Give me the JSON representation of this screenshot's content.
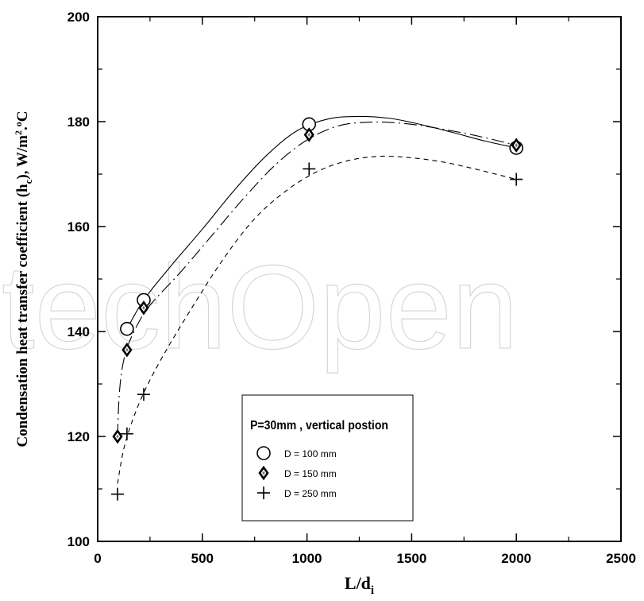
{
  "chart_data": {
    "type": "scatter",
    "xlabel_main": "L/d",
    "xlabel_sub": "i",
    "ylabel_parts": [
      "Condensation heat transfer coefficient (h",
      "c",
      "),  W/m",
      "2",
      ".",
      "o",
      "C"
    ],
    "xlim": [
      0,
      2500
    ],
    "ylim": [
      100,
      200
    ],
    "x_ticks": [
      0,
      500,
      1000,
      1500,
      2000,
      2500
    ],
    "y_ticks": [
      100,
      120,
      140,
      160,
      180,
      200
    ],
    "grid": false,
    "legend_position": "lower-center",
    "legend_title": "P=30mm , vertical postion",
    "watermark": "techOpen",
    "series": [
      {
        "name": "D = 100 mm",
        "marker": "circle",
        "line": "solid",
        "x": [
          140,
          220,
          1010,
          2000
        ],
        "y": [
          140.5,
          146,
          179.5,
          175
        ],
        "curve": [
          [
            140,
            140.5
          ],
          [
            220,
            146
          ],
          [
            350,
            152.5
          ],
          [
            500,
            159.5
          ],
          [
            650,
            166.8
          ],
          [
            800,
            173.3
          ],
          [
            950,
            178.2
          ],
          [
            1100,
            180.5
          ],
          [
            1250,
            181.0
          ],
          [
            1400,
            180.6
          ],
          [
            1550,
            179.4
          ],
          [
            1700,
            177.9
          ],
          [
            1850,
            176.3
          ],
          [
            2000,
            175
          ]
        ]
      },
      {
        "name": "D = 150 mm",
        "marker": "diamond",
        "line": "dash-dot",
        "x": [
          95,
          140,
          220,
          1010,
          2000
        ],
        "y": [
          120,
          136.5,
          144.5,
          177.5,
          175.5
        ],
        "curve": [
          [
            95,
            120
          ],
          [
            105,
            129
          ],
          [
            130,
            135.5
          ],
          [
            180,
            140.5
          ],
          [
            250,
            145
          ],
          [
            400,
            151.5
          ],
          [
            550,
            158.5
          ],
          [
            700,
            165.5
          ],
          [
            850,
            171.8
          ],
          [
            1000,
            176.5
          ],
          [
            1150,
            179.2
          ],
          [
            1300,
            179.9
          ],
          [
            1450,
            179.7
          ],
          [
            1600,
            178.9
          ],
          [
            1800,
            177.4
          ],
          [
            2000,
            175.5
          ]
        ]
      },
      {
        "name": "D = 250 mm",
        "marker": "plus",
        "line": "dashed",
        "x": [
          95,
          140,
          220,
          1010,
          2000
        ],
        "y": [
          109,
          120.5,
          128,
          171,
          169
        ],
        "curve": [
          [
            95,
            111
          ],
          [
            130,
            118.5
          ],
          [
            200,
            126.5
          ],
          [
            300,
            134.5
          ],
          [
            450,
            144.5
          ],
          [
            600,
            153.8
          ],
          [
            750,
            161.5
          ],
          [
            900,
            166.8
          ],
          [
            1050,
            170.5
          ],
          [
            1200,
            172.6
          ],
          [
            1350,
            173.4
          ],
          [
            1500,
            173.1
          ],
          [
            1650,
            172.3
          ],
          [
            1800,
            171
          ],
          [
            2000,
            169
          ]
        ]
      }
    ]
  }
}
